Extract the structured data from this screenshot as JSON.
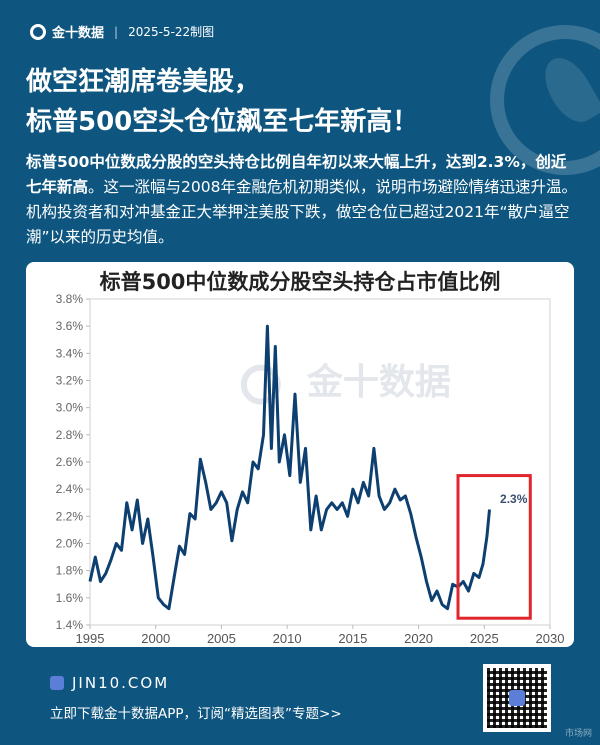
{
  "header": {
    "brand": "金十数据",
    "date_label": "2025-5-22制图"
  },
  "title": {
    "line1": "做空狂潮席卷美股，",
    "line2": "标普500空头仓位飙至七年新高！"
  },
  "summary": {
    "bold": "标普500中位数成分股的空头持仓比例自年初以来大幅上升，达到2.3%，创近七年新高",
    "rest": "。这一涨幅与2008年金融危机初期类似，说明市场避险情绪迅速升温。机构投资者和对冲基金正大举押注美股下跌，做空仓位已超过2021年“散户逼空潮”以来的历史均值。"
  },
  "chart_data": {
    "type": "line",
    "title": "标普500中位数成分股空头持仓占市值比例",
    "xlabel": "",
    "ylabel": "",
    "xlim": [
      1995,
      2030
    ],
    "ylim": [
      1.4,
      3.8
    ],
    "x_ticks": [
      "1995",
      "2000",
      "2005",
      "2010",
      "2015",
      "2020",
      "2025",
      "2030"
    ],
    "y_ticks": [
      "1.4%",
      "1.6%",
      "1.8%",
      "2.0%",
      "2.2%",
      "2.4%",
      "2.6%",
      "2.8%",
      "3.0%",
      "3.2%",
      "3.4%",
      "3.6%",
      "3.8%"
    ],
    "series": [
      {
        "name": "空头持仓占市值比例",
        "x": [
          1995.0,
          1995.4,
          1995.8,
          1996.2,
          1996.6,
          1997.0,
          1997.4,
          1997.8,
          1998.2,
          1998.6,
          1999.0,
          1999.4,
          1999.8,
          2000.2,
          2000.6,
          2001.0,
          2001.4,
          2001.8,
          2002.2,
          2002.6,
          2003.0,
          2003.4,
          2003.8,
          2004.2,
          2004.6,
          2005.0,
          2005.4,
          2005.8,
          2006.2,
          2006.6,
          2007.0,
          2007.4,
          2007.8,
          2008.2,
          2008.5,
          2008.8,
          2009.1,
          2009.4,
          2009.8,
          2010.2,
          2010.6,
          2011.0,
          2011.4,
          2011.8,
          2012.2,
          2012.6,
          2013.0,
          2013.4,
          2013.8,
          2014.2,
          2014.6,
          2015.0,
          2015.4,
          2015.8,
          2016.2,
          2016.6,
          2017.0,
          2017.4,
          2017.8,
          2018.2,
          2018.6,
          2019.0,
          2019.4,
          2019.8,
          2020.2,
          2020.6,
          2021.0,
          2021.4,
          2021.8,
          2022.2,
          2022.6,
          2023.0,
          2023.4,
          2023.8,
          2024.2,
          2024.6,
          2024.9,
          2025.2,
          2025.4
        ],
        "values": [
          1.72,
          1.9,
          1.72,
          1.78,
          1.88,
          2.0,
          1.95,
          2.3,
          2.1,
          2.32,
          2.0,
          2.18,
          1.9,
          1.6,
          1.55,
          1.52,
          1.75,
          1.98,
          1.92,
          2.22,
          2.18,
          2.62,
          2.45,
          2.25,
          2.3,
          2.38,
          2.3,
          2.02,
          2.25,
          2.38,
          2.3,
          2.6,
          2.55,
          2.8,
          3.6,
          2.7,
          3.45,
          2.6,
          2.8,
          2.5,
          3.1,
          2.45,
          2.7,
          2.1,
          2.35,
          2.1,
          2.25,
          2.3,
          2.25,
          2.3,
          2.2,
          2.4,
          2.3,
          2.45,
          2.35,
          2.7,
          2.35,
          2.25,
          2.3,
          2.4,
          2.32,
          2.35,
          2.22,
          2.05,
          1.9,
          1.72,
          1.58,
          1.65,
          1.55,
          1.52,
          1.7,
          1.68,
          1.72,
          1.65,
          1.78,
          1.75,
          1.85,
          2.05,
          2.25
        ]
      }
    ],
    "annotations": [
      {
        "text": "2.3%",
        "x": 2026.2,
        "y": 2.3
      }
    ],
    "highlight_box": {
      "x0": 2023.0,
      "x1": 2028.5,
      "y0": 1.45,
      "y1": 2.5,
      "color": "#e0262c"
    },
    "grid": false,
    "legend": "none"
  },
  "footer": {
    "site": "JIN10.COM",
    "cta": "立即下载金十数据APP，订阅“精选图表”专题>>",
    "corner": "市场网"
  },
  "colors": {
    "background": "#0e5680",
    "line": "#0d3f70",
    "highlight": "#e0262c"
  }
}
